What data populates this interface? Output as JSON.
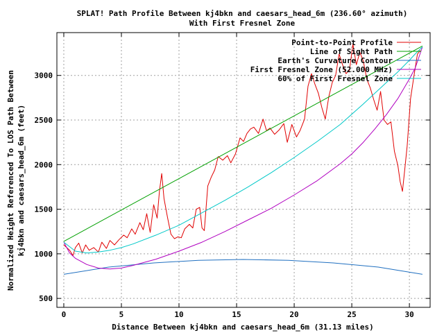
{
  "chart_data": {
    "type": "line",
    "title_line1": "SPLAT! Path Profile Between kj4bkn and caesars_head_6m (236.60° azimuth)",
    "title_line2": "With First Fresnel Zone",
    "xlabel": "Distance Between kj4bkn and caesars_head_6m (31.13 miles)",
    "ylabel_line1": "Normalized Height Referenced To LOS Path Between",
    "ylabel_line2": "kj4bkn and caesars_head_6m (feet)",
    "xlim": [
      -0.6,
      31.8
    ],
    "ylim": [
      400,
      3480
    ],
    "x_ticks": [
      0,
      5,
      10,
      15,
      20,
      25,
      30
    ],
    "y_ticks": [
      500,
      1000,
      1500,
      2000,
      2500,
      3000
    ],
    "grid": true,
    "legend_position": "top-right",
    "series": [
      {
        "name": "Point-to-Point Profile",
        "color": "#e00000",
        "x": [
          0,
          0.5,
          0.8,
          1.0,
          1.3,
          1.6,
          1.9,
          2.2,
          2.6,
          3.0,
          3.3,
          3.7,
          4.0,
          4.4,
          4.8,
          5.2,
          5.5,
          5.9,
          6.2,
          6.6,
          6.9,
          7.2,
          7.5,
          7.8,
          8.1,
          8.3,
          8.5,
          8.7,
          9.0,
          9.3,
          9.6,
          9.9,
          10.2,
          10.5,
          10.9,
          11.2,
          11.5,
          11.8,
          12.0,
          12.2,
          12.5,
          12.8,
          13.1,
          13.4,
          13.8,
          14.2,
          14.5,
          14.9,
          15.3,
          15.6,
          15.9,
          16.2,
          16.5,
          16.9,
          17.3,
          17.6,
          17.9,
          18.3,
          18.7,
          19.1,
          19.4,
          19.8,
          20.2,
          20.5,
          20.9,
          21.2,
          21.5,
          21.8,
          22.1,
          22.4,
          22.7,
          23.0,
          23.3,
          23.6,
          23.9,
          24.2,
          24.5,
          24.8,
          25.1,
          25.4,
          25.7,
          26.0,
          26.3,
          26.6,
          26.9,
          27.2,
          27.5,
          27.8,
          28.1,
          28.4,
          28.7,
          29.0,
          29.2,
          29.4,
          29.6,
          29.8,
          30.1,
          30.4,
          30.7,
          30.95
        ],
        "y": [
          1100,
          1040,
          980,
          1070,
          1120,
          1010,
          1100,
          1040,
          1070,
          1020,
          1130,
          1060,
          1150,
          1100,
          1160,
          1210,
          1180,
          1280,
          1220,
          1350,
          1270,
          1450,
          1240,
          1550,
          1400,
          1700,
          1900,
          1620,
          1410,
          1220,
          1170,
          1190,
          1180,
          1280,
          1330,
          1290,
          1500,
          1520,
          1290,
          1260,
          1760,
          1860,
          1940,
          2090,
          2050,
          2100,
          2020,
          2120,
          2300,
          2260,
          2350,
          2400,
          2420,
          2350,
          2510,
          2380,
          2410,
          2340,
          2390,
          2460,
          2250,
          2450,
          2310,
          2380,
          2510,
          2880,
          3020,
          2900,
          2800,
          2640,
          2510,
          2760,
          2920,
          3000,
          3240,
          3120,
          3020,
          3060,
          3350,
          3120,
          3260,
          3160,
          2960,
          2860,
          2730,
          2610,
          2820,
          2500,
          2450,
          2480,
          2150,
          1990,
          1810,
          1700,
          1950,
          2200,
          2740,
          3000,
          3240,
          3280
        ]
      },
      {
        "name": "Line of Sight Path",
        "color": "#00a000",
        "x": [
          0,
          31.13
        ],
        "y": [
          1140,
          3330
        ]
      },
      {
        "name": "Earth's Curvature Contour",
        "color": "#1f6fc0",
        "x": [
          0,
          3.9,
          7.8,
          11.7,
          15.56,
          19.5,
          23.4,
          27.3,
          31.13
        ],
        "y": [
          770,
          851,
          898,
          927,
          937,
          927,
          898,
          851,
          770
        ]
      },
      {
        "name": "First Fresnel Zone (52.000 MHz)",
        "color": "#b000c0",
        "x": [
          0,
          0.5,
          1.0,
          2.0,
          3.0,
          4.0,
          5.0,
          6.0,
          8.0,
          10.0,
          12.0,
          14.0,
          16.0,
          18.0,
          20.0,
          22.0,
          24.0,
          25.0,
          26.0,
          27.0,
          28.0,
          29.0,
          30.0,
          30.5,
          31.13
        ],
        "y": [
          1130,
          1010,
          950,
          880,
          840,
          830,
          840,
          870,
          940,
          1030,
          1130,
          1250,
          1380,
          1510,
          1660,
          1820,
          2010,
          2120,
          2250,
          2400,
          2560,
          2740,
          2960,
          3080,
          3320
        ]
      },
      {
        "name": "60% of First Fresnel Zone",
        "color": "#00c8c8",
        "x": [
          0,
          1.0,
          2.0,
          3.0,
          4.0,
          5.0,
          6.0,
          8.0,
          10.0,
          12.0,
          14.0,
          16.0,
          18.0,
          20.0,
          22.0,
          24.0,
          26.0,
          27.0,
          28.0,
          29.0,
          30.0,
          30.5,
          31.13
        ],
        "y": [
          1130,
          1030,
          1010,
          1020,
          1040,
          1070,
          1110,
          1210,
          1320,
          1460,
          1600,
          1750,
          1910,
          2080,
          2260,
          2450,
          2680,
          2800,
          2920,
          3040,
          3170,
          3240,
          3320
        ]
      }
    ]
  }
}
